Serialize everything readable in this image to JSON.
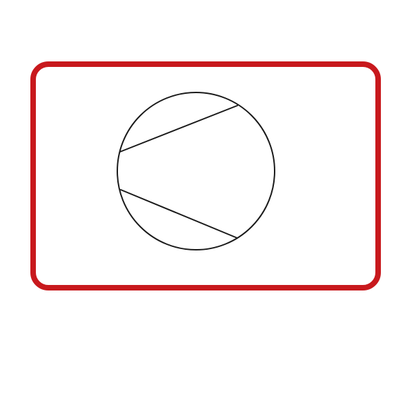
{
  "diagram": {
    "description_label": "",
    "colors": {
      "background": "#ffffff",
      "frame_stroke": "#c8191d",
      "line_stroke": "#1a1a1a"
    },
    "icons": {
      "frame": "rounded-rectangle-frame",
      "circle": "circle-outline",
      "chords": "chord-lines"
    }
  }
}
